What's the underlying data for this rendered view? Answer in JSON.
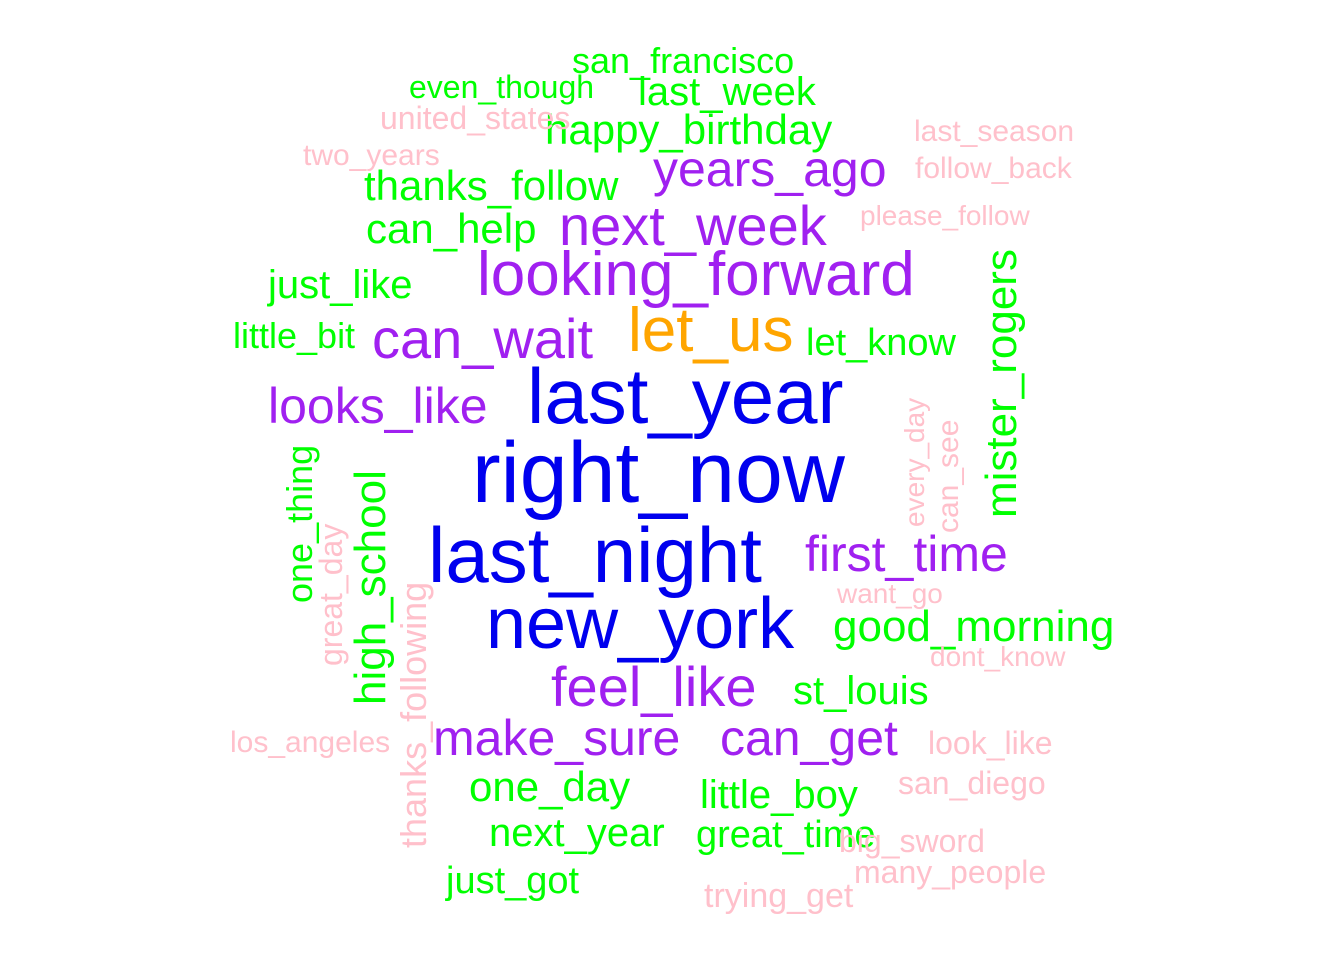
{
  "palette": {
    "blue": "#0000ee",
    "orange": "#ffa500",
    "purple": "#a020f0",
    "green": "#00ff00",
    "pink": "#ffc0cb"
  },
  "words": [
    {
      "text": "right_now",
      "color": "blue"
    },
    {
      "text": "last_year",
      "color": "blue"
    },
    {
      "text": "last_night",
      "color": "blue"
    },
    {
      "text": "new_york",
      "color": "blue"
    },
    {
      "text": "let_us",
      "color": "orange"
    },
    {
      "text": "looking_forward",
      "color": "purple"
    },
    {
      "text": "next_week",
      "color": "purple"
    },
    {
      "text": "years_ago",
      "color": "purple"
    },
    {
      "text": "can_wait",
      "color": "purple"
    },
    {
      "text": "looks_like",
      "color": "purple"
    },
    {
      "text": "first_time",
      "color": "purple"
    },
    {
      "text": "feel_like",
      "color": "purple"
    },
    {
      "text": "make_sure",
      "color": "purple"
    },
    {
      "text": "can_get",
      "color": "purple"
    },
    {
      "text": "san_francisco",
      "color": "green"
    },
    {
      "text": "last_week",
      "color": "green"
    },
    {
      "text": "happy_birthday",
      "color": "green"
    },
    {
      "text": "thanks_follow",
      "color": "green"
    },
    {
      "text": "can_help",
      "color": "green"
    },
    {
      "text": "just_like",
      "color": "green"
    },
    {
      "text": "little_bit",
      "color": "green"
    },
    {
      "text": "let_know",
      "color": "green"
    },
    {
      "text": "mister_rogers",
      "color": "green"
    },
    {
      "text": "high_school",
      "color": "green"
    },
    {
      "text": "one_thing",
      "color": "green"
    },
    {
      "text": "good_morning",
      "color": "green"
    },
    {
      "text": "st_louis",
      "color": "green"
    },
    {
      "text": "one_day",
      "color": "green"
    },
    {
      "text": "little_boy",
      "color": "green"
    },
    {
      "text": "next_year",
      "color": "green"
    },
    {
      "text": "great_time",
      "color": "green"
    },
    {
      "text": "just_got",
      "color": "green"
    },
    {
      "text": "even_though",
      "color": "green"
    },
    {
      "text": "united_states",
      "color": "pink"
    },
    {
      "text": "two_years",
      "color": "pink"
    },
    {
      "text": "last_season",
      "color": "pink"
    },
    {
      "text": "follow_back",
      "color": "pink"
    },
    {
      "text": "please_follow",
      "color": "pink"
    },
    {
      "text": "can_see",
      "color": "pink"
    },
    {
      "text": "every_day",
      "color": "pink"
    },
    {
      "text": "want_go",
      "color": "pink"
    },
    {
      "text": "dont_know",
      "color": "pink"
    },
    {
      "text": "los_angeles",
      "color": "pink"
    },
    {
      "text": "look_like",
      "color": "pink"
    },
    {
      "text": "san_diego",
      "color": "pink"
    },
    {
      "text": "big_sword",
      "color": "pink"
    },
    {
      "text": "many_people",
      "color": "pink"
    },
    {
      "text": "trying_get",
      "color": "pink"
    },
    {
      "text": "thanks_following",
      "color": "pink"
    },
    {
      "text": "great_day",
      "color": "pink"
    }
  ]
}
